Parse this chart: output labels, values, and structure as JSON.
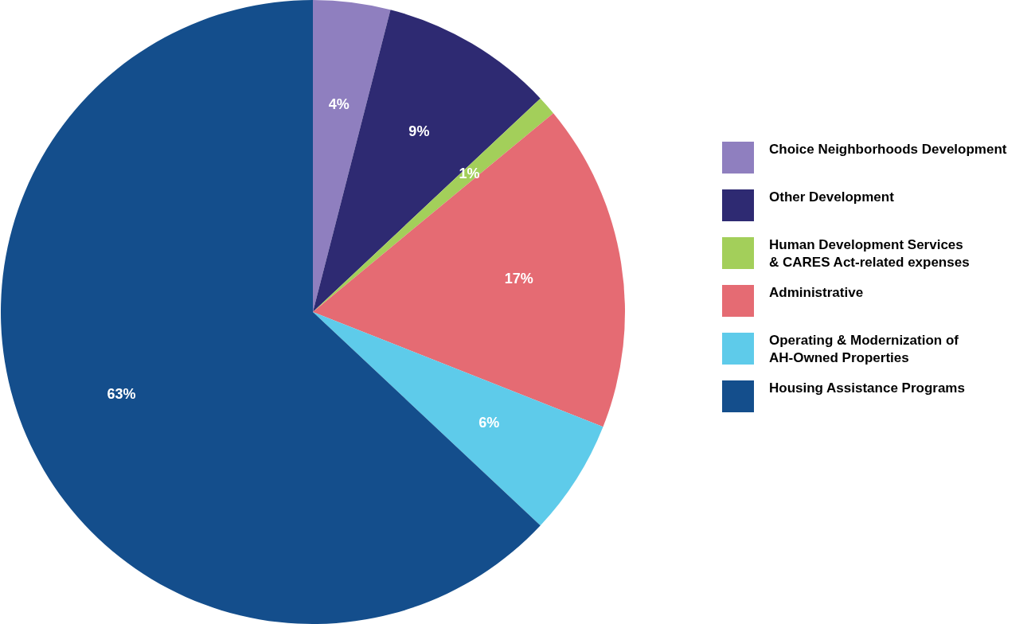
{
  "chart_data": {
    "type": "pie",
    "categories": [
      "Choice Neighborhoods Development",
      "Other Development",
      "Human Development Services\n& CARES Act-related expenses",
      "Administrative",
      "Operating & Modernization of\nAH-Owned Properties",
      "Housing Assistance Programs"
    ],
    "values": [
      4,
      9,
      1,
      17,
      6,
      63
    ],
    "colors": [
      "#8f7fbf",
      "#2e2a72",
      "#a3cf5a",
      "#e56b73",
      "#5ecbea",
      "#144e8c"
    ],
    "value_labels": [
      "4%",
      "9%",
      "1%",
      "17%",
      "6%",
      "63%"
    ],
    "legend": "right"
  }
}
